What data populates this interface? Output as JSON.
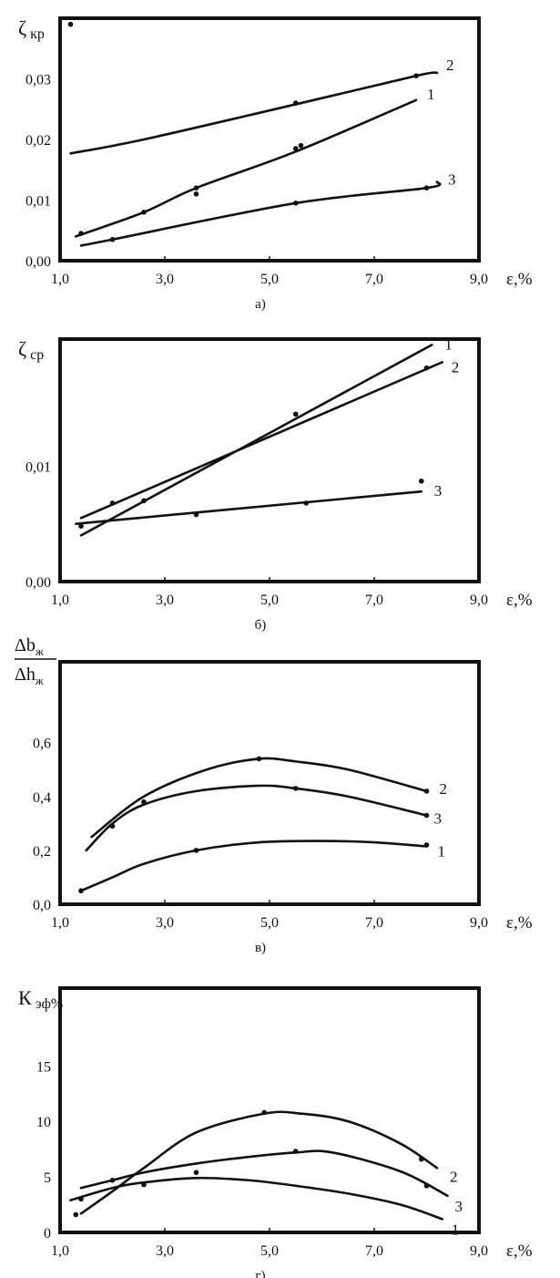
{
  "chart_data": [
    {
      "type": "line",
      "panel_label": "а)",
      "ylabel": "ζ кр",
      "xlabel": "ε,%",
      "xlim": [
        1.0,
        9.0
      ],
      "ylim": [
        0.0,
        0.04
      ],
      "x_ticks": [
        "1,0",
        "3,0",
        "5,0",
        "7,0",
        "9,0"
      ],
      "y_ticks": [
        "0,00",
        "0,01",
        "0,02",
        "0,03"
      ],
      "y_tick_values": [
        0.0,
        0.01,
        0.02,
        0.03
      ],
      "series": [
        {
          "name": "1",
          "x": [
            1.3,
            2.6,
            3.6,
            5.5,
            7.8
          ],
          "y": [
            0.004,
            0.008,
            0.012,
            0.018,
            0.0265
          ]
        },
        {
          "name": "2",
          "x": [
            1.2,
            2.6,
            5.5,
            7.8,
            8.2
          ],
          "y": [
            0.0177,
            0.02,
            0.0258,
            0.0305,
            0.031
          ]
        },
        {
          "name": "3",
          "x": [
            1.4,
            2.0,
            5.5,
            8.0,
            8.2
          ],
          "y": [
            0.0025,
            0.0035,
            0.0095,
            0.012,
            0.013
          ]
        }
      ],
      "points": [
        [
          1.4,
          0.0045
        ],
        [
          2.0,
          0.0035
        ],
        [
          2.6,
          0.008
        ],
        [
          3.6,
          0.012
        ],
        [
          3.6,
          0.011
        ],
        [
          5.5,
          0.026
        ],
        [
          5.5,
          0.0185
        ],
        [
          5.5,
          0.0095
        ],
        [
          5.6,
          0.019
        ],
        [
          7.8,
          0.0305
        ],
        [
          8.0,
          0.012
        ],
        [
          1.2,
          0.039
        ]
      ]
    },
    {
      "type": "line",
      "panel_label": "б)",
      "ylabel": "ζ ср",
      "xlabel": "ε,%",
      "xlim": [
        1.0,
        9.0
      ],
      "ylim": [
        0.0,
        0.021
      ],
      "x_ticks": [
        "1,0",
        "3,0",
        "5,0",
        "7,0",
        "9,0"
      ],
      "y_ticks": [
        "0,00",
        "0,01"
      ],
      "y_tick_values": [
        0.0,
        0.01
      ],
      "series": [
        {
          "name": "1",
          "x": [
            1.4,
            8.1
          ],
          "y": [
            0.004,
            0.0205
          ]
        },
        {
          "name": "2",
          "x": [
            1.4,
            8.3
          ],
          "y": [
            0.0055,
            0.019
          ]
        },
        {
          "name": "3",
          "x": [
            1.3,
            7.9
          ],
          "y": [
            0.005,
            0.0078
          ]
        }
      ],
      "points": [
        [
          1.4,
          0.0048
        ],
        [
          2.0,
          0.0068
        ],
        [
          2.6,
          0.007
        ],
        [
          3.6,
          0.0058
        ],
        [
          5.5,
          0.0145
        ],
        [
          5.7,
          0.0068
        ],
        [
          8.0,
          0.0185
        ],
        [
          7.9,
          0.0087
        ]
      ]
    },
    {
      "type": "line",
      "panel_label": "в)",
      "ylabel_num": "Δb",
      "ylabel_num_sub": "ж",
      "ylabel_den": "Δh",
      "ylabel_den_sub": "ж",
      "xlabel": "ε,%",
      "xlim": [
        1.0,
        9.0
      ],
      "ylim": [
        0.0,
        0.9
      ],
      "x_ticks": [
        "1,0",
        "3,0",
        "5,0",
        "7,0",
        "9,0"
      ],
      "y_ticks": [
        "0,0",
        "0,2",
        "0,4",
        "0,6"
      ],
      "y_tick_values": [
        0.0,
        0.2,
        0.4,
        0.6
      ],
      "series": [
        {
          "name": "2",
          "x": [
            1.6,
            2.6,
            3.8,
            4.8,
            5.5,
            6.5,
            8.0
          ],
          "y": [
            0.25,
            0.4,
            0.5,
            0.54,
            0.53,
            0.5,
            0.42
          ]
        },
        {
          "name": "3",
          "x": [
            1.5,
            2.0,
            2.6,
            3.6,
            4.8,
            5.5,
            6.5,
            8.0
          ],
          "y": [
            0.2,
            0.3,
            0.37,
            0.42,
            0.44,
            0.43,
            0.4,
            0.33
          ]
        },
        {
          "name": "1",
          "x": [
            1.4,
            2.0,
            2.6,
            3.6,
            4.8,
            6.0,
            7.0,
            8.0
          ],
          "y": [
            0.05,
            0.1,
            0.15,
            0.2,
            0.23,
            0.235,
            0.23,
            0.215
          ]
        }
      ],
      "points": [
        [
          2.0,
          0.29
        ],
        [
          2.6,
          0.38
        ],
        [
          3.6,
          0.2
        ],
        [
          4.8,
          0.54
        ],
        [
          5.5,
          0.43
        ],
        [
          8.0,
          0.42
        ],
        [
          8.0,
          0.33
        ],
        [
          1.4,
          0.05
        ],
        [
          8.0,
          0.22
        ]
      ]
    },
    {
      "type": "line",
      "panel_label": "г)",
      "ylabel": "К эф%",
      "xlabel": "ε,%",
      "xlim": [
        1.0,
        9.0
      ],
      "ylim": [
        0.0,
        22.0
      ],
      "x_ticks": [
        "1,0",
        "3,0",
        "5,0",
        "7,0",
        "9,0"
      ],
      "y_ticks": [
        "0",
        "5",
        "10",
        "15"
      ],
      "y_tick_values": [
        0,
        5,
        10,
        15
      ],
      "series": [
        {
          "name": "2",
          "x": [
            1.4,
            2.0,
            2.6,
            3.6,
            4.9,
            5.6,
            6.5,
            7.5,
            8.2
          ],
          "y": [
            1.7,
            3.7,
            5.8,
            9.0,
            10.7,
            10.7,
            10.0,
            8.0,
            5.8
          ]
        },
        {
          "name": "3",
          "x": [
            1.4,
            2.0,
            2.6,
            3.6,
            4.6,
            5.5,
            6.2,
            7.5,
            8.4
          ],
          "y": [
            4.0,
            4.7,
            5.4,
            6.2,
            6.8,
            7.2,
            7.2,
            5.5,
            3.3
          ]
        },
        {
          "name": "1",
          "x": [
            1.2,
            2.0,
            2.6,
            3.6,
            4.6,
            5.5,
            6.5,
            7.5,
            8.3
          ],
          "y": [
            2.9,
            4.0,
            4.5,
            4.9,
            4.7,
            4.2,
            3.5,
            2.5,
            1.2
          ]
        }
      ],
      "points": [
        [
          1.3,
          1.6
        ],
        [
          1.4,
          3.0
        ],
        [
          2.0,
          4.7
        ],
        [
          2.6,
          4.3
        ],
        [
          3.6,
          5.4
        ],
        [
          4.9,
          10.8
        ],
        [
          5.5,
          7.3
        ],
        [
          7.9,
          6.6
        ],
        [
          8.0,
          4.2
        ]
      ]
    }
  ]
}
